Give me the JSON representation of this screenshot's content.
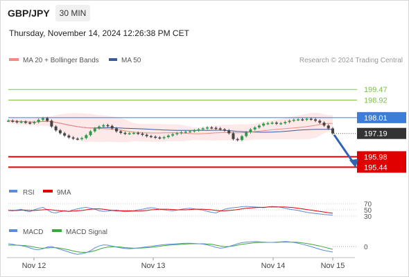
{
  "header": {
    "pair": "GBP/JPY",
    "timeframe": "30 MIN",
    "datetime": "Thursday, November 14, 2024 12:26:38 PM CET",
    "credit": "Research © 2024 Trading Central"
  },
  "colors": {
    "ma20": "#f28b82",
    "ma50": "#3a5a9a",
    "bollinger_fill": "#fde3e3",
    "resistance": "#7cbf4a",
    "pivot": "#3b7dd8",
    "support": "#e00000",
    "current": "#333333",
    "rsi": "#5b8bd9",
    "rsi_ma": "#e00000",
    "macd": "#5b8bd9",
    "macd_signal": "#3aa83a",
    "candle_up": "#2e9a4e",
    "candle_down": "#444444"
  },
  "chart_data": [
    {
      "type": "candlestick",
      "legend": [
        "MA 20 + Bollinger Bands",
        "MA 50"
      ],
      "ylim": [
        194.7,
        200.7
      ],
      "x_labels": [
        "Nov 12",
        "Nov 13",
        "Nov 14",
        "Nov 15"
      ],
      "levels": [
        {
          "value": 199.47,
          "label": "199.47",
          "kind": "resistance"
        },
        {
          "value": 198.92,
          "label": "198.92",
          "kind": "resistance"
        },
        {
          "value": 198.01,
          "label": "198.01",
          "kind": "pivot"
        },
        {
          "value": 197.19,
          "label": "197.19",
          "kind": "current"
        },
        {
          "value": 195.98,
          "label": "195.98",
          "kind": "support"
        },
        {
          "value": 195.44,
          "label": "195.44",
          "kind": "support"
        }
      ],
      "close_series": [
        197.85,
        197.82,
        197.78,
        197.8,
        197.75,
        197.72,
        197.78,
        197.9,
        197.98,
        197.85,
        197.55,
        197.35,
        197.2,
        197.08,
        196.98,
        196.92,
        196.9,
        196.95,
        197.1,
        197.3,
        197.45,
        197.55,
        197.62,
        197.58,
        197.45,
        197.3,
        197.22,
        197.18,
        197.2,
        197.22,
        197.18,
        197.12,
        197.05,
        197.02,
        196.98,
        196.95,
        197.0,
        197.08,
        197.15,
        197.2,
        197.25,
        197.28,
        197.3,
        197.35,
        197.4,
        197.45,
        197.5,
        197.48,
        197.45,
        197.4,
        197.35,
        197.2,
        196.9,
        196.85,
        197.05,
        197.25,
        197.4,
        197.5,
        197.6,
        197.7,
        197.72,
        197.75,
        197.7,
        197.72,
        197.78,
        197.85,
        197.9,
        197.92,
        197.9,
        197.95,
        197.92,
        197.85,
        197.75,
        197.6,
        197.45,
        197.19
      ],
      "projection": {
        "from": 197.19,
        "to": 195.44
      },
      "sub_charts": [
        {
          "type": "line",
          "legend": [
            "RSI",
            "9MA"
          ],
          "levels": [
            "70",
            "50",
            "30"
          ],
          "rsi": [
            48,
            47,
            49,
            52,
            46,
            44,
            50,
            55,
            58,
            50,
            42,
            40,
            44,
            47,
            45,
            50,
            53,
            56,
            58,
            55,
            52,
            47,
            45,
            46,
            48,
            49,
            46,
            44,
            45,
            47,
            50,
            52,
            55,
            57,
            55,
            52,
            50,
            48,
            47,
            49,
            52,
            54,
            55,
            53,
            51,
            49,
            45,
            42,
            40,
            46,
            52,
            55,
            57,
            58,
            60,
            61,
            60,
            59,
            58,
            57,
            59,
            61,
            60,
            58,
            55,
            52,
            50,
            48,
            45,
            42,
            40,
            38,
            37,
            35,
            34,
            33
          ],
          "ma": [
            48,
            48,
            48,
            49,
            49,
            48,
            48,
            49,
            50,
            51,
            50,
            48,
            47,
            46,
            45,
            46,
            47,
            48,
            50,
            52,
            53,
            53,
            52,
            50,
            48,
            47,
            47,
            47,
            47,
            46,
            46,
            47,
            48,
            50,
            51,
            52,
            52,
            52,
            51,
            50,
            50,
            50,
            51,
            52,
            52,
            52,
            51,
            50,
            48,
            47,
            47,
            48,
            49,
            51,
            53,
            55,
            56,
            57,
            58,
            58,
            59,
            59,
            59,
            59,
            59,
            58,
            57,
            55,
            53,
            51,
            49,
            47,
            45,
            43,
            41,
            39
          ]
        },
        {
          "type": "line",
          "legend": [
            "MACD",
            "MACD Signal"
          ],
          "levels": [
            "0"
          ],
          "macd": [
            0.1,
            0.08,
            0.05,
            0.03,
            0.0,
            -0.05,
            -0.1,
            -0.12,
            -0.08,
            -0.02,
            0.0,
            -0.05,
            -0.1,
            -0.15,
            -0.2,
            -0.25,
            -0.28,
            -0.26,
            -0.22,
            -0.15,
            -0.05,
            0.02,
            0.06,
            0.05,
            0.02,
            -0.02,
            -0.05,
            -0.07,
            -0.08,
            -0.07,
            -0.05,
            -0.03,
            -0.01,
            0.01,
            0.03,
            0.05,
            0.07,
            0.08,
            0.09,
            0.1,
            0.11,
            0.12,
            0.12,
            0.11,
            0.1,
            0.09,
            0.06,
            0.02,
            -0.03,
            -0.06,
            -0.04,
            0.0,
            0.05,
            0.1,
            0.14,
            0.16,
            0.17,
            0.18,
            0.17,
            0.16,
            0.15,
            0.15,
            0.16,
            0.17,
            0.18,
            0.17,
            0.15,
            0.12,
            0.08,
            0.04,
            0.0,
            -0.05,
            -0.1,
            -0.14,
            -0.17,
            -0.2
          ],
          "signal": [
            0.05,
            0.05,
            0.05,
            0.04,
            0.03,
            0.01,
            -0.02,
            -0.05,
            -0.06,
            -0.05,
            -0.04,
            -0.04,
            -0.06,
            -0.09,
            -0.12,
            -0.16,
            -0.19,
            -0.21,
            -0.21,
            -0.19,
            -0.15,
            -0.1,
            -0.05,
            -0.02,
            -0.01,
            -0.01,
            -0.02,
            -0.04,
            -0.05,
            -0.06,
            -0.06,
            -0.05,
            -0.04,
            -0.03,
            -0.01,
            0.01,
            0.03,
            0.05,
            0.06,
            0.07,
            0.08,
            0.09,
            0.1,
            0.1,
            0.1,
            0.1,
            0.09,
            0.08,
            0.05,
            0.02,
            0.0,
            0.0,
            0.02,
            0.05,
            0.08,
            0.1,
            0.12,
            0.14,
            0.15,
            0.15,
            0.15,
            0.15,
            0.15,
            0.16,
            0.16,
            0.16,
            0.16,
            0.15,
            0.13,
            0.11,
            0.08,
            0.05,
            0.02,
            -0.02,
            -0.06,
            -0.1
          ]
        }
      ]
    }
  ]
}
